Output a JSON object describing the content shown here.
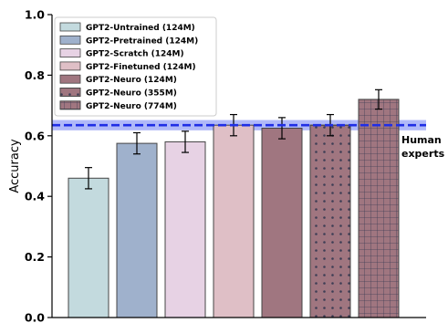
{
  "chart_data": {
    "type": "bar",
    "title": "",
    "xlabel": "",
    "ylabel": "Accuracy",
    "ylim": [
      0,
      1.0
    ],
    "yticks": [
      "0.0",
      "0.2",
      "0.4",
      "0.6",
      "0.8",
      "1.0"
    ],
    "grid": false,
    "legend_position": "top-left",
    "series": [
      {
        "name": "GPT2-Untrained (124M)",
        "value": 0.46,
        "error": 0.035,
        "color": "#c3dade",
        "pattern": "none"
      },
      {
        "name": "GPT2-Pretrained (124M)",
        "value": 0.575,
        "error": 0.035,
        "color": "#9fb1cc",
        "pattern": "none"
      },
      {
        "name": "GPT2-Scratch (124M)",
        "value": 0.58,
        "error": 0.035,
        "color": "#e7d2e4",
        "pattern": "none"
      },
      {
        "name": "GPT2-Finetuned (124M)",
        "value": 0.635,
        "error": 0.035,
        "color": "#dfbfc6",
        "pattern": "none"
      },
      {
        "name": "GPT2-Neuro (124M)",
        "value": 0.625,
        "error": 0.035,
        "color": "#a07680",
        "pattern": "none"
      },
      {
        "name": "GPT2-Neuro (355M)",
        "value": 0.635,
        "error": 0.035,
        "color": "#a07680",
        "pattern": "dots"
      },
      {
        "name": "GPT2-Neuro (774M)",
        "value": 0.72,
        "error": 0.032,
        "color": "#a07680",
        "pattern": "grid"
      }
    ],
    "reference": {
      "label_lines": [
        "Human",
        "experts"
      ],
      "value": 0.635,
      "band": [
        0.618,
        0.652
      ],
      "line_color": "#1f2ee6",
      "band_color": "#6f7ff2"
    }
  }
}
